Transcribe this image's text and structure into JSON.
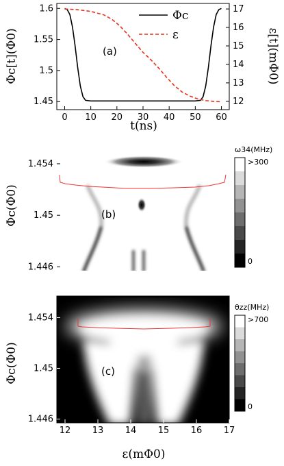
{
  "chart_data": [
    {
      "type": "line",
      "panel_label": "(a)",
      "xlabel": "t(ns)",
      "ylabel_left": "Φc[t](Φ0)",
      "ylabel_right": "ε[t](mΦ0)",
      "xlim": [
        -3,
        63
      ],
      "ylim_left": [
        1.437,
        1.608
      ],
      "ylim_right": [
        11.55,
        17.3
      ],
      "xticks": [
        "0",
        "10",
        "20",
        "30",
        "40",
        "50",
        "60"
      ],
      "yticks_left": [
        "1.45",
        "1.5",
        "1.55",
        "1.6"
      ],
      "yticks_right": [
        "12",
        "13",
        "14",
        "15",
        "16",
        "17"
      ],
      "legend": {
        "position": "top-right",
        "entries": [
          "Φc",
          "ε"
        ]
      },
      "series": [
        {
          "name": "Φc",
          "axis": "left",
          "color": "#000000",
          "style": "solid",
          "x": [
            0,
            1,
            2,
            3,
            4,
            5,
            6,
            7,
            8,
            10,
            20,
            30,
            40,
            50,
            52,
            53,
            54,
            55,
            56,
            57,
            58,
            59,
            60
          ],
          "y": [
            1.6,
            1.598,
            1.59,
            1.57,
            1.54,
            1.505,
            1.475,
            1.458,
            1.452,
            1.451,
            1.451,
            1.451,
            1.451,
            1.451,
            1.452,
            1.458,
            1.475,
            1.505,
            1.54,
            1.57,
            1.59,
            1.598,
            1.6
          ]
        },
        {
          "name": "ε",
          "axis": "right",
          "color": "#e8321e",
          "style": "dashed",
          "x": [
            0,
            5,
            10,
            15,
            18,
            21,
            24,
            27,
            30,
            33,
            36,
            39,
            42,
            45,
            48,
            51,
            54,
            57,
            60
          ],
          "y": [
            17.0,
            16.96,
            16.87,
            16.68,
            16.45,
            16.1,
            15.65,
            15.15,
            14.65,
            14.25,
            13.8,
            13.3,
            12.85,
            12.5,
            12.28,
            12.13,
            12.04,
            12.0,
            11.98
          ]
        }
      ]
    },
    {
      "type": "heatmap",
      "panel_label": "(b)",
      "ylabel": "Φc(Φ0)",
      "xlim": [
        11.75,
        17.0
      ],
      "ylim": [
        1.4457,
        1.4557
      ],
      "yticks": [
        "1.446",
        "1.45",
        "1.454"
      ],
      "colorbar": {
        "title": "ω34(MHz)",
        "top_label": ">300",
        "bottom_label": "0",
        "levels": 8
      },
      "background": "white"
    },
    {
      "type": "heatmap",
      "panel_label": "(c)",
      "xlabel": "ε(mΦ0)",
      "ylabel": "Φc(Φ0)",
      "xlim": [
        11.75,
        17.0
      ],
      "ylim": [
        1.4457,
        1.4557
      ],
      "xticks": [
        "12",
        "13",
        "14",
        "15",
        "16",
        "17"
      ],
      "yticks": [
        "1.446",
        "1.45",
        "1.454"
      ],
      "colorbar": {
        "title": "θzz(MHz)",
        "top_label": ">700",
        "bottom_label": "0",
        "levels": 8
      },
      "background": "black"
    }
  ]
}
